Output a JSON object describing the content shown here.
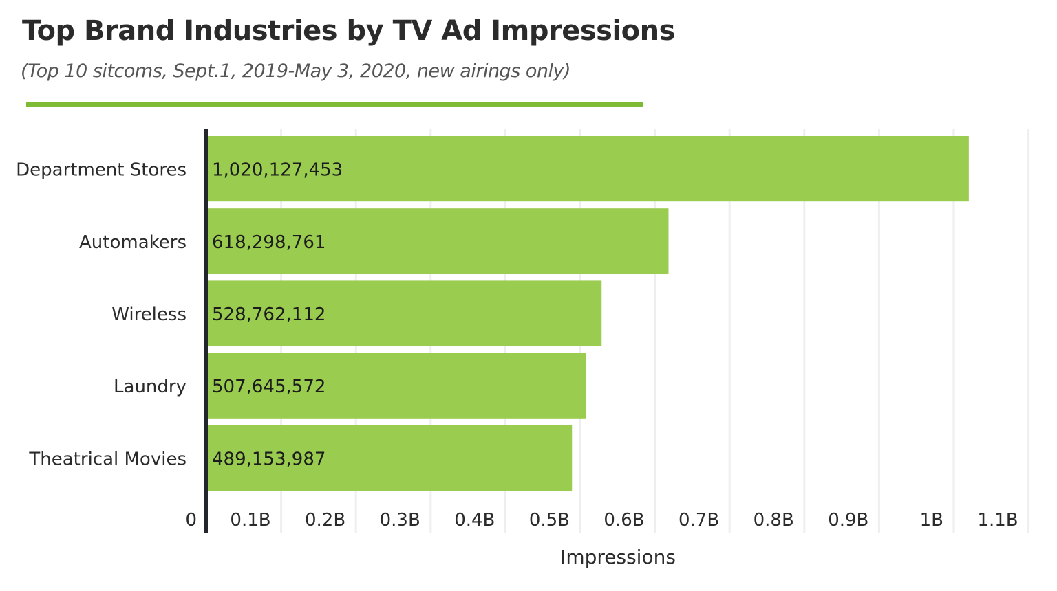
{
  "chart_data": {
    "type": "bar",
    "orientation": "horizontal",
    "title": "Top Brand Industries by TV Ad Impressions",
    "subtitle": "(Top 10 sitcoms, Sept.1, 2019-May 3, 2020, new airings only)",
    "categories": [
      "Department Stores",
      "Automakers",
      "Wireless",
      "Laundry",
      "Theatrical Movies"
    ],
    "values": [
      1020127453,
      618298761,
      528762112,
      507645572,
      489153987
    ],
    "data_labels": [
      "1,020,127,453",
      "618,298,761",
      "528,762,112",
      "507,645,572",
      "489,153,987"
    ],
    "xlabel": "Impressions",
    "ylabel": "",
    "xlim": [
      0,
      1100000000
    ],
    "x_ticks": [
      0,
      100000000,
      200000000,
      300000000,
      400000000,
      500000000,
      600000000,
      700000000,
      800000000,
      900000000,
      1000000000,
      1100000000
    ],
    "x_tick_labels": [
      "0",
      "0.1B",
      "0.2B",
      "0.3B",
      "0.4B",
      "0.5B",
      "0.6B",
      "0.7B",
      "0.8B",
      "0.9B",
      "1B",
      "1.1B"
    ],
    "grid": "vertical",
    "colors": {
      "bar": "#99cc4f",
      "accent_rule": "#7dbb35",
      "axis": "#23262b",
      "grid": "#eeeeee"
    }
  }
}
